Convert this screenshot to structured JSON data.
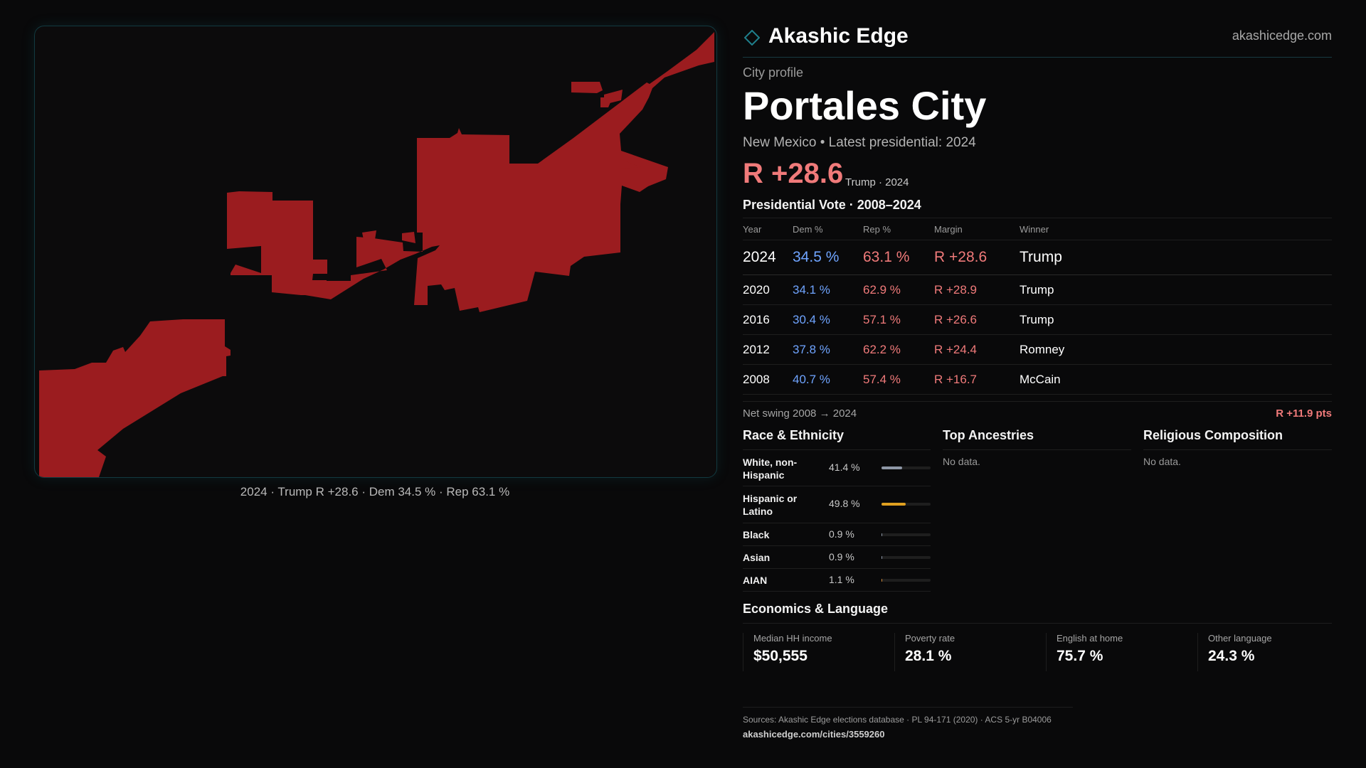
{
  "map": {
    "caption": "2024 · Trump R +28.6 · Dem 34.5 % · Rep 63.1 %",
    "fill_color": "#9b1c1f"
  },
  "brand": {
    "name": "Akashic Edge",
    "url": "akashicedge.com",
    "icon": "diamond-logo-icon"
  },
  "profile": {
    "eyebrow": "City profile",
    "city": "Portales City",
    "subtitle": "New Mexico • Latest presidential: 2024",
    "margin": "R +28.6",
    "margin_sub": "Trump · 2024"
  },
  "presidential": {
    "title": "Presidential Vote · 2008–2024",
    "headers": [
      "Year",
      "Dem %",
      "Rep %",
      "Margin",
      "Winner"
    ],
    "rows": [
      {
        "year": "2024",
        "dem": "34.5 %",
        "rep": "63.1 %",
        "margin": "R +28.6",
        "winner": "Trump"
      },
      {
        "year": "2020",
        "dem": "34.1 %",
        "rep": "62.9 %",
        "margin": "R +28.9",
        "winner": "Trump"
      },
      {
        "year": "2016",
        "dem": "30.4 %",
        "rep": "57.1 %",
        "margin": "R +26.6",
        "winner": "Trump"
      },
      {
        "year": "2012",
        "dem": "37.8 %",
        "rep": "62.2 %",
        "margin": "R +24.4",
        "winner": "Romney"
      },
      {
        "year": "2008",
        "dem": "40.7 %",
        "rep": "57.4 %",
        "margin": "R +16.7",
        "winner": "McCain"
      }
    ],
    "swing_label": "Net swing 2008 → 2024",
    "swing_value": "R +11.9 pts"
  },
  "race": {
    "title": "Race & Ethnicity",
    "rows": [
      {
        "label": "White, non-Hispanic",
        "pct": "41.4 %",
        "value": 41.4,
        "color": "#8e97a6"
      },
      {
        "label": "Hispanic or Latino",
        "pct": "49.8 %",
        "value": 49.8,
        "color": "#e0a020"
      },
      {
        "label": "Black",
        "pct": "0.9 %",
        "value": 0.9,
        "color": "#8e97a6"
      },
      {
        "label": "Asian",
        "pct": "0.9 %",
        "value": 0.9,
        "color": "#8e97a6"
      },
      {
        "label": "AIAN",
        "pct": "1.1 %",
        "value": 1.1,
        "color": "#d08a3a"
      }
    ]
  },
  "ancestries": {
    "title": "Top Ancestries",
    "empty": "No data."
  },
  "religion": {
    "title": "Religious Composition",
    "empty": "No data."
  },
  "economics": {
    "title": "Economics & Language",
    "stats": [
      {
        "label": "Median HH income",
        "value": "$50,555"
      },
      {
        "label": "Poverty rate",
        "value": "28.1 %"
      },
      {
        "label": "English at home",
        "value": "75.7 %"
      },
      {
        "label": "Other language",
        "value": "24.3 %"
      }
    ]
  },
  "sources": {
    "line": "Sources: Akashic Edge elections database · PL 94-171 (2020) · ACS 5-yr B04006",
    "link": "akashicedge.com/cities/3559260"
  }
}
